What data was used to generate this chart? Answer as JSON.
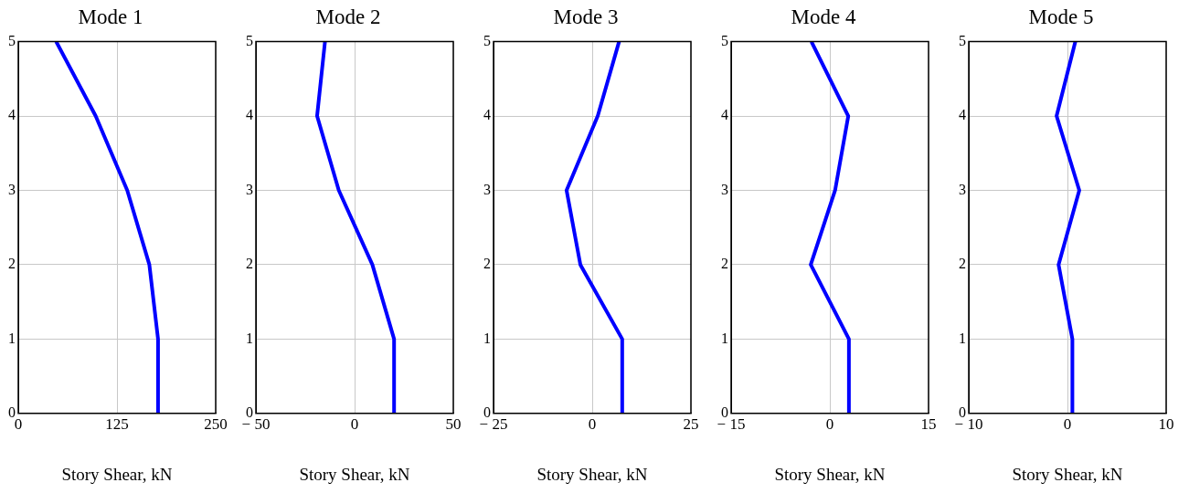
{
  "chart_data": [
    {
      "type": "line",
      "title": "Mode 1",
      "xlabel": "Story Shear, kN",
      "x": [
        177,
        177,
        166,
        138,
        98,
        48
      ],
      "values": [
        0,
        1,
        2,
        3,
        4,
        5
      ],
      "color": "#0000ff",
      "xlim": [
        0,
        250
      ],
      "xticks": [
        0,
        125,
        250
      ],
      "ylim": [
        0,
        5
      ],
      "yticks": [
        0,
        1,
        2,
        3,
        4,
        5
      ],
      "grid": true,
      "marker": "none"
    },
    {
      "type": "line",
      "title": "Mode 2",
      "xlabel": "Story Shear, kN",
      "x": [
        20,
        20,
        9,
        -8,
        -19,
        -15
      ],
      "values": [
        0,
        1,
        2,
        3,
        4,
        5
      ],
      "color": "#0000ff",
      "xlim": [
        -50,
        50
      ],
      "xticks": [
        {
          "value": -50,
          "label": "− 50"
        },
        0,
        50
      ],
      "ylim": [
        0,
        5
      ],
      "yticks": [
        0,
        1,
        2,
        3,
        4,
        5
      ],
      "grid": true,
      "marker": "none"
    },
    {
      "type": "line",
      "title": "Mode 3",
      "xlabel": "Story Shear, kN",
      "x": [
        7.6,
        7.6,
        -3,
        -6.5,
        1.4,
        6.8
      ],
      "values": [
        0,
        1,
        2,
        3,
        4,
        5
      ],
      "color": "#0000ff",
      "xlim": [
        -25,
        25
      ],
      "xticks": [
        {
          "value": -25,
          "label": "− 25"
        },
        0,
        25
      ],
      "ylim": [
        0,
        5
      ],
      "yticks": [
        0,
        1,
        2,
        3,
        4,
        5
      ],
      "grid": true,
      "marker": "none"
    },
    {
      "type": "line",
      "title": "Mode 4",
      "xlabel": "Story Shear, kN",
      "x": [
        2.9,
        2.9,
        -2.9,
        0.8,
        2.8,
        -2.8
      ],
      "values": [
        0,
        1,
        2,
        3,
        4,
        5
      ],
      "color": "#0000ff",
      "xlim": [
        -15,
        15
      ],
      "xticks": [
        {
          "value": -15,
          "label": "− 15"
        },
        0,
        15
      ],
      "ylim": [
        0,
        5
      ],
      "yticks": [
        0,
        1,
        2,
        3,
        4,
        5
      ],
      "grid": true,
      "marker": "none"
    },
    {
      "type": "line",
      "title": "Mode 5",
      "xlabel": "Story Shear, kN",
      "x": [
        0.5,
        0.5,
        -0.9,
        1.2,
        -1.1,
        0.8
      ],
      "values": [
        0,
        1,
        2,
        3,
        4,
        5
      ],
      "color": "#0000ff",
      "xlim": [
        -10,
        10
      ],
      "xticks": [
        {
          "value": -10,
          "label": "− 10"
        },
        0,
        10
      ],
      "ylim": [
        0,
        5
      ],
      "yticks": [
        0,
        1,
        2,
        3,
        4,
        5
      ],
      "grid": true,
      "marker": "none"
    }
  ]
}
